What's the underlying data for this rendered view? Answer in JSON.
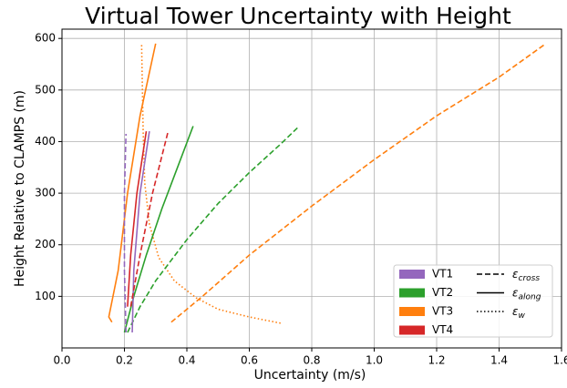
{
  "chart_data": {
    "type": "line",
    "title": "Virtual Tower Uncertainty with Height",
    "x_label": "Uncertainty (m/s)",
    "y_label": "Height Relative to CLAMPS (m)",
    "xlim": [
      0,
      1.6
    ],
    "ylim": [
      0,
      618
    ],
    "xticks": [
      {
        "value": 0,
        "label": "0.0"
      },
      0.2,
      0.4,
      0.6,
      0.8,
      {
        "value": 1,
        "label": "1.0"
      },
      1.2,
      1.4,
      1.6
    ],
    "yticks": [
      100,
      200,
      300,
      400,
      500,
      600
    ],
    "grid": true,
    "legend_position": "lower right",
    "legend": {
      "colors": [
        {
          "label": "VT1",
          "color": "#9467bd"
        },
        {
          "label": "VT2",
          "color": "#2ca02c"
        },
        {
          "label": "VT3",
          "color": "#ff7f0e"
        },
        {
          "label": "VT4",
          "color": "#d62728"
        }
      ],
      "styles": [
        {
          "symbol": "ε",
          "subscript": "cross",
          "style": "dashed"
        },
        {
          "symbol": "ε",
          "subscript": "along",
          "style": "solid"
        },
        {
          "symbol": "ε",
          "subscript": "w",
          "style": "dotted"
        }
      ]
    },
    "series": [
      {
        "color": "#ff7f0e",
        "style": "dashed",
        "x": [
          0.35,
          0.45,
          0.6,
          0.8,
          1.0,
          1.2,
          1.4,
          1.55
        ],
        "values": [
          50,
          100,
          180,
          275,
          365,
          450,
          525,
          590
        ]
      },
      {
        "color": "#ff7f0e",
        "style": "solid",
        "x": [
          0.16,
          0.15,
          0.16,
          0.18,
          0.21,
          0.25,
          0.3
        ],
        "values": [
          50,
          60,
          90,
          150,
          300,
          450,
          590
        ]
      },
      {
        "color": "#ff7f0e",
        "style": "dotted",
        "x": [
          0.7,
          0.6,
          0.5,
          0.43,
          0.36,
          0.31,
          0.28,
          0.265,
          0.26,
          0.255
        ],
        "values": [
          48,
          60,
          75,
          97,
          130,
          175,
          240,
          320,
          420,
          590
        ]
      },
      {
        "color": "#2ca02c",
        "style": "dashed",
        "x": [
          0.21,
          0.25,
          0.3,
          0.4,
          0.5,
          0.6,
          0.7,
          0.76
        ],
        "values": [
          30,
          80,
          130,
          210,
          280,
          340,
          395,
          430
        ]
      },
      {
        "color": "#2ca02c",
        "style": "solid",
        "x": [
          0.2,
          0.23,
          0.27,
          0.32,
          0.37,
          0.42
        ],
        "values": [
          30,
          100,
          180,
          270,
          350,
          430
        ]
      },
      {
        "color": "#9467bd",
        "style": "dashed",
        "x": [
          0.205,
          0.2,
          0.2,
          0.205
        ],
        "values": [
          30,
          150,
          300,
          415
        ]
      },
      {
        "color": "#9467bd",
        "style": "solid",
        "x": [
          0.225,
          0.23,
          0.25,
          0.28
        ],
        "values": [
          30,
          150,
          300,
          420
        ]
      },
      {
        "color": "#d62728",
        "style": "dashed",
        "x": [
          0.22,
          0.25,
          0.29,
          0.34
        ],
        "values": [
          80,
          180,
          300,
          420
        ]
      },
      {
        "color": "#d62728",
        "style": "solid",
        "x": [
          0.21,
          0.22,
          0.24,
          0.27
        ],
        "values": [
          80,
          180,
          300,
          420
        ]
      }
    ]
  }
}
